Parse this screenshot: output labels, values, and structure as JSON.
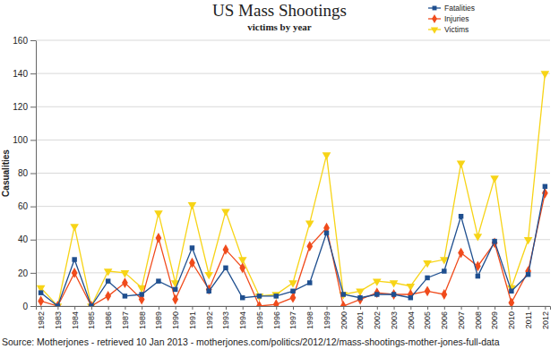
{
  "chart_data": {
    "type": "line",
    "title": "US Mass Shootings",
    "subtitle": "victims by year",
    "y_label": "Casualities",
    "source": "Source: Motherjones - retrieved 10 Jan 2013 - motherjones.com/politics/2012/12/mass-shootings-mother-jones-full-data",
    "categories": [
      "1982",
      "1983",
      "1984",
      "1985",
      "1986",
      "1987",
      "1988",
      "1989",
      "1990",
      "1991",
      "1992",
      "1993",
      "1994",
      "1995",
      "1996",
      "1997",
      "1998",
      "1999",
      "2000",
      "2001",
      "2002",
      "2003",
      "2004",
      "2005",
      "2006",
      "2007",
      "2008",
      "2009",
      "2010",
      "2011",
      "2012"
    ],
    "series": [
      {
        "name": "Fatalities",
        "color": "#1f4f8f",
        "marker": "square",
        "values": [
          8,
          0,
          28,
          0,
          15,
          6,
          7,
          15,
          10,
          35,
          9,
          23,
          5,
          6,
          6,
          9,
          14,
          44,
          7,
          5,
          7,
          7,
          5,
          17,
          21,
          54,
          18,
          39,
          9,
          19,
          72
        ]
      },
      {
        "name": "Injuries",
        "color": "#f04b1c",
        "marker": "diamond",
        "values": [
          3,
          0,
          20,
          0,
          6,
          14,
          4,
          41,
          4,
          26,
          10,
          34,
          23,
          0,
          1,
          5,
          36,
          47,
          0,
          4,
          8,
          7,
          7,
          9,
          7,
          32,
          24,
          38,
          2,
          21,
          68
        ]
      },
      {
        "name": "Victims",
        "color": "#f7d417",
        "marker": "triangle-down",
        "values": [
          11,
          0,
          48,
          0,
          21,
          20,
          11,
          56,
          14,
          61,
          19,
          57,
          28,
          6,
          7,
          14,
          50,
          91,
          7,
          9,
          15,
          14,
          12,
          26,
          28,
          86,
          42,
          77,
          11,
          40,
          140
        ]
      }
    ],
    "ylim": [
      0,
      160
    ],
    "yticks": [
      0,
      20,
      40,
      60,
      80,
      100,
      120,
      140,
      160
    ],
    "grid": true,
    "legend": "top-right"
  }
}
